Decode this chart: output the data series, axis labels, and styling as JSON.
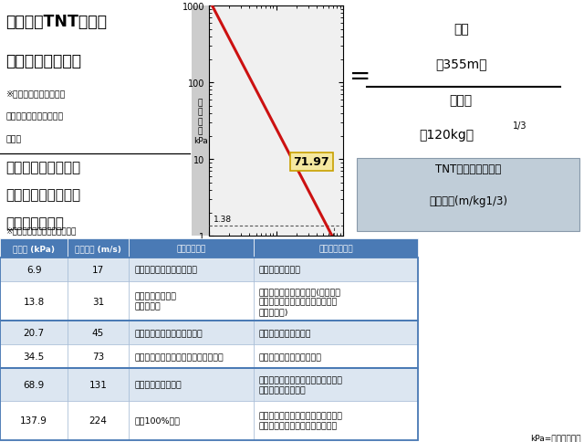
{
  "title1_line1": "爆風圧をTNT火薬で",
  "title1_line2": "換算した到達距離",
  "note1_line1": "※産総研・松永猛裕招聘",
  "note1_line2": "　研究員の資料に基づき",
  "note1_line3": "　作成",
  "title2_line1": "爆風圧と最大風速、",
  "title2_line2": "人体への影響および",
  "title2_line3": "構造物への影響",
  "note2": "※米国防総省の資料を基に作成",
  "formula_value": "71.97",
  "formula_eq": "=",
  "formula_num": "距離",
  "formula_num2": "（355m）",
  "formula_den": "火薬量",
  "formula_den2": "（120kg）",
  "formula_exp": "1/3",
  "tnt_line1": "TNT火薬で換算した",
  "tnt_line2": "到達距離(m/kg1/3)",
  "dotted_label": "1.38",
  "table_headers": [
    "爆風圧 (kPa)",
    "最大風速 (m/s)",
    "人体への影響",
    "構造物への影響"
  ],
  "table_rows": [
    [
      "6.9",
      "17",
      "破片による軽傷が発生する",
      "窓ガラスが割れる"
    ],
    [
      "13.8",
      "31",
      "飛散するガラスや\n破片で負傷",
      "家に対する中程度の損傷(窓やドア\nが吹き飛ばされ、屋根がひどい損\n傷を受ける)"
    ],
    [
      "20.7",
      "45",
      "重傷者が出て、死者も出うる",
      "住宅の骨格が崩壊する"
    ],
    [
      "34.5",
      "73",
      "例外なく負傷し、広範囲に死者が出る",
      "ほとんどの建物が崩壊する"
    ],
    [
      "68.9",
      "131",
      "ほとんどの人が死亡",
      "鉄筋コンクリートの建物がひどく損\n傷または破壊される"
    ],
    [
      "137.9",
      "224",
      "ほぼ100%死亡",
      "頑丈に造られたコンクリートの建物\nでもひどく損傷または破壊される"
    ]
  ],
  "footer": "kPa=キロパスカル",
  "bg_color": "#ffffff",
  "header_bg": "#4a7ab5",
  "row_bg_light": "#dce6f1",
  "row_bg_white": "#ffffff",
  "border_thick_color": "#4a7ab5",
  "border_thin_color": "#9ab3d0",
  "graph_line_color": "#cc1111",
  "graph_bg": "#f0f0f0",
  "ylabel_bg": "#cccccc",
  "formula_box_bg": "#f5e8a0",
  "formula_box_border": "#c8a000",
  "tnt_box_bg": "#c0cdd8",
  "tnt_box_border": "#8899aa",
  "dotted_color": "#555555"
}
